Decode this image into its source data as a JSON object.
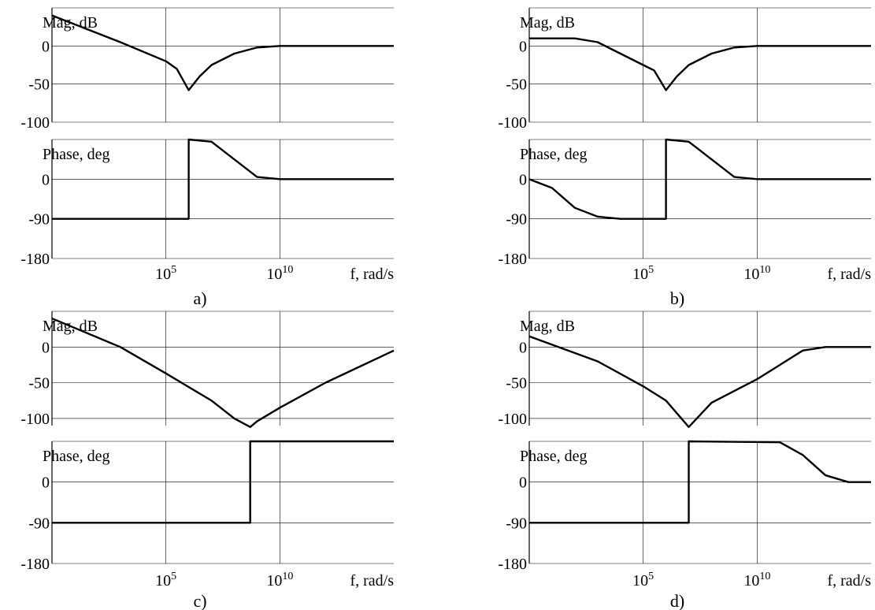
{
  "chart_data": [
    {
      "panel_label": "a)",
      "type": "line",
      "xlabel": "f, rad/s",
      "x_scale": "log",
      "xlim": [
        1,
        1000000000000000.0
      ],
      "x_ticks": [
        {
          "base": "10",
          "exp": "5"
        },
        {
          "base": "10",
          "exp": "10"
        }
      ],
      "magnitude": {
        "ylabel": "Mag, dB",
        "ylim": [
          -100,
          50
        ],
        "y_ticks": [
          "0",
          "-50",
          "-100"
        ],
        "series": [
          {
            "points": [
              [
                1,
                40
              ],
              [
                1000.0,
                5
              ],
              [
                100000.0,
                -20
              ],
              [
                300000.0,
                -30
              ],
              [
                1000000.0,
                -58
              ],
              [
                3000000.0,
                -40
              ],
              [
                10000000.0,
                -25
              ],
              [
                100000000.0,
                -10
              ],
              [
                1000000000.0,
                -2
              ],
              [
                10000000000.0,
                0
              ],
              [
                1000000000000000.0,
                0
              ]
            ]
          }
        ]
      },
      "phase": {
        "ylabel": "Phase, deg",
        "ylim": [
          -180,
          90
        ],
        "y_ticks": [
          "0",
          "-90",
          "-180"
        ],
        "series": [
          {
            "points": [
              [
                1,
                -90
              ],
              [
                1000000.0,
                -90
              ],
              [
                1000000.0,
                90
              ],
              [
                10000000.0,
                85
              ],
              [
                100000000.0,
                45
              ],
              [
                1000000000.0,
                5
              ],
              [
                10000000000.0,
                0
              ],
              [
                1000000000000000.0,
                0
              ]
            ]
          }
        ]
      }
    },
    {
      "panel_label": "b)",
      "type": "line",
      "xlabel": "f, rad/s",
      "x_scale": "log",
      "xlim": [
        1,
        1000000000000000.0
      ],
      "x_ticks": [
        {
          "base": "10",
          "exp": "5"
        },
        {
          "base": "10",
          "exp": "10"
        }
      ],
      "magnitude": {
        "ylabel": "Mag, dB",
        "ylim": [
          -100,
          50
        ],
        "y_ticks": [
          "0",
          "-50",
          "-100"
        ],
        "series": [
          {
            "points": [
              [
                1,
                10
              ],
              [
                100.0,
                10
              ],
              [
                1000.0,
                5
              ],
              [
                10000.0,
                -10
              ],
              [
                100000.0,
                -25
              ],
              [
                300000.0,
                -32
              ],
              [
                1000000.0,
                -58
              ],
              [
                3000000.0,
                -40
              ],
              [
                10000000.0,
                -25
              ],
              [
                100000000.0,
                -10
              ],
              [
                1000000000.0,
                -2
              ],
              [
                10000000000.0,
                0
              ],
              [
                1000000000000000.0,
                0
              ]
            ]
          }
        ]
      },
      "phase": {
        "ylabel": "Phase, deg",
        "ylim": [
          -180,
          90
        ],
        "y_ticks": [
          "0",
          "-90",
          "-180"
        ],
        "series": [
          {
            "points": [
              [
                1,
                0
              ],
              [
                10.0,
                -20
              ],
              [
                100.0,
                -65
              ],
              [
                1000.0,
                -85
              ],
              [
                10000.0,
                -90
              ],
              [
                1000000.0,
                -90
              ],
              [
                1000000.0,
                90
              ],
              [
                10000000.0,
                85
              ],
              [
                100000000.0,
                45
              ],
              [
                1000000000.0,
                5
              ],
              [
                10000000000.0,
                0
              ],
              [
                1000000000000000.0,
                0
              ]
            ]
          }
        ]
      }
    },
    {
      "panel_label": "c)",
      "type": "line",
      "xlabel": "f, rad/s",
      "x_scale": "log",
      "xlim": [
        1,
        1000000000000000.0
      ],
      "x_ticks": [
        {
          "base": "10",
          "exp": "5"
        },
        {
          "base": "10",
          "exp": "10"
        }
      ],
      "magnitude": {
        "ylabel": "Mag, dB",
        "ylim": [
          -110,
          50
        ],
        "y_ticks": [
          "0",
          "-50",
          "-100"
        ],
        "series": [
          {
            "points": [
              [
                1,
                40
              ],
              [
                1000.0,
                0
              ],
              [
                100000.0,
                -37
              ],
              [
                10000000.0,
                -75
              ],
              [
                100000000.0,
                -100
              ],
              [
                500000000.0,
                -112
              ],
              [
                1000000000.0,
                -104
              ],
              [
                10000000000.0,
                -85
              ],
              [
                1000000000000.0,
                -50
              ],
              [
                1000000000000000.0,
                -5
              ]
            ]
          }
        ]
      },
      "phase": {
        "ylabel": "Phase, deg",
        "ylim": [
          -180,
          90
        ],
        "y_ticks": [
          "0",
          "-90",
          "-180"
        ],
        "series": [
          {
            "points": [
              [
                1,
                -90
              ],
              [
                500000000.0,
                -90
              ],
              [
                500000000.0,
                90
              ],
              [
                1000000000000000.0,
                90
              ]
            ]
          }
        ]
      }
    },
    {
      "panel_label": "d)",
      "type": "line",
      "xlabel": "f, rad/s",
      "x_scale": "log",
      "xlim": [
        1,
        1000000000000000.0
      ],
      "x_ticks": [
        {
          "base": "10",
          "exp": "5"
        },
        {
          "base": "10",
          "exp": "10"
        }
      ],
      "magnitude": {
        "ylabel": "Mag, dB",
        "ylim": [
          -110,
          50
        ],
        "y_ticks": [
          "0",
          "-50",
          "-100"
        ],
        "series": [
          {
            "points": [
              [
                1,
                15
              ],
              [
                1000.0,
                -20
              ],
              [
                100000.0,
                -55
              ],
              [
                1000000.0,
                -75
              ],
              [
                10000000.0,
                -112
              ],
              [
                100000000.0,
                -78
              ],
              [
                10000000000.0,
                -45
              ],
              [
                100000000000.0,
                -25
              ],
              [
                1000000000000.0,
                -5
              ],
              [
                10000000000000.0,
                0
              ],
              [
                1000000000000000.0,
                0
              ]
            ]
          }
        ]
      },
      "phase": {
        "ylabel": "Phase, deg",
        "ylim": [
          -180,
          90
        ],
        "y_ticks": [
          "0",
          "-90",
          "-180"
        ],
        "series": [
          {
            "points": [
              [
                1,
                -90
              ],
              [
                10000000.0,
                -90
              ],
              [
                10000000.0,
                90
              ],
              [
                100000000000.0,
                88
              ],
              [
                1000000000000.0,
                60
              ],
              [
                10000000000000.0,
                15
              ],
              [
                100000000000000.0,
                0
              ],
              [
                1000000000000000.0,
                0
              ]
            ]
          }
        ]
      }
    }
  ]
}
